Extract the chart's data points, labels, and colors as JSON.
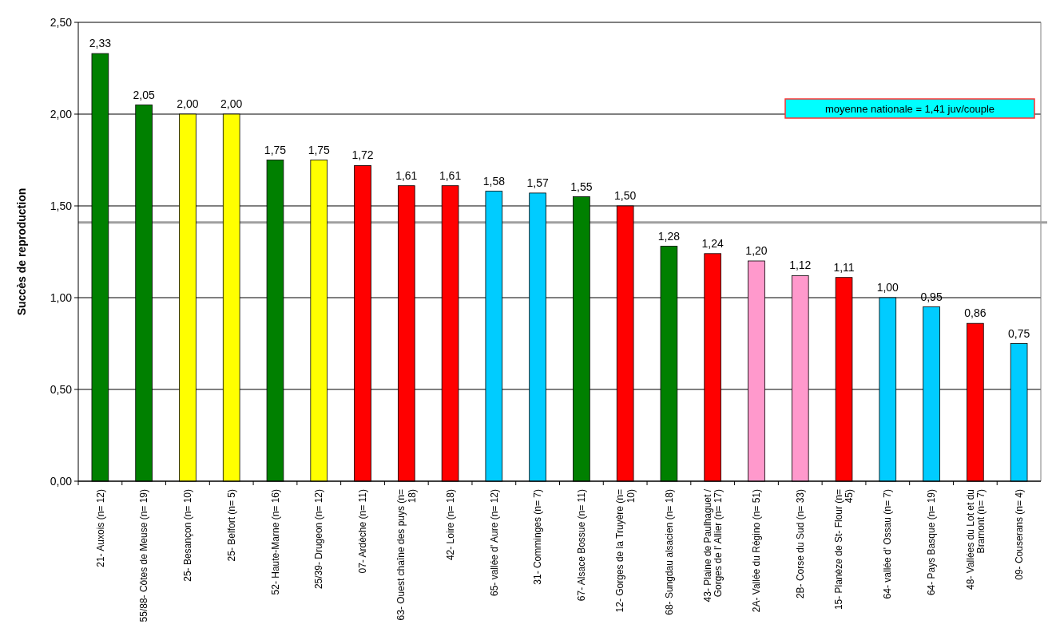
{
  "chart_data": {
    "type": "bar",
    "ylabel": "Succès de reproduction",
    "categories": [
      "21- Auxois (n= 12)",
      "55/88- Côtes de Meuse (n= 19)",
      "25- Besançon (n= 10)",
      "25- Belfort (n= 5)",
      "52- Haute-Marne (n= 16)",
      "25/39- Drugeon (n= 12)",
      "07- Ardèche (n= 11)",
      "63- Ouest chaîne des puys (n= 18)",
      "42- Loire (n= 18)",
      "65- vallée d' Aure (n= 12)",
      "31- Comminges (n= 7)",
      "67- Alsace Bossue (n= 11)",
      "12- Gorges de la Truyère (n= 10)",
      "68- Sungdau alsacien (n= 18)",
      "43- Plaine de Paulhaguet / Gorges de l' Allier (n= 17)",
      "2A- Vallée du Régino (n= 51)",
      "2B- Corse du Sud (n= 33)",
      "15- Planèze de St- Flour (n= 45)",
      "64- vallée d' Ossau (n= 7)",
      "64- Pays Basque (n= 19)",
      "48- Vallées du Lot et du Bramont (n= 7)",
      "09- Couserans (n= 4)"
    ],
    "values": [
      2.33,
      2.05,
      2.0,
      2.0,
      1.75,
      1.75,
      1.72,
      1.61,
      1.61,
      1.58,
      1.57,
      1.55,
      1.5,
      1.28,
      1.24,
      1.2,
      1.12,
      1.11,
      1.0,
      0.95,
      0.86,
      0.75
    ],
    "value_labels": [
      "2,33",
      "2,05",
      "2,00",
      "2,00",
      "1,75",
      "1,75",
      "1,72",
      "1,61",
      "1,61",
      "1,58",
      "1,57",
      "1,55",
      "1,50",
      "1,28",
      "1,24",
      "1,20",
      "1,12",
      "1,11",
      "1,00",
      "0,95",
      "0,86",
      "0,75"
    ],
    "colors": [
      "#008000",
      "#008000",
      "#ffff00",
      "#ffff00",
      "#008000",
      "#ffff00",
      "#ff0000",
      "#ff0000",
      "#ff0000",
      "#00ccff",
      "#00ccff",
      "#008000",
      "#ff0000",
      "#008000",
      "#ff0000",
      "#ff99cc",
      "#ff99cc",
      "#ff0000",
      "#00ccff",
      "#00ccff",
      "#ff0000",
      "#00ccff"
    ],
    "ylim": [
      0,
      2.5
    ],
    "yticks": [
      {
        "value": 0,
        "label": "0,00"
      },
      {
        "value": 0.5,
        "label": "0,50"
      },
      {
        "value": 1,
        "label": "1,00"
      },
      {
        "value": 1.5,
        "label": "1,50"
      },
      {
        "value": 2,
        "label": "2,00"
      },
      {
        "value": 2.5,
        "label": "2,50"
      }
    ],
    "grid": "y",
    "annotations": [
      "moyenne nationale = 1,41 juv/couple"
    ],
    "ref_lines": [
      {
        "axis": "y",
        "value": 1.41,
        "color": "#a0a0a0"
      }
    ]
  }
}
